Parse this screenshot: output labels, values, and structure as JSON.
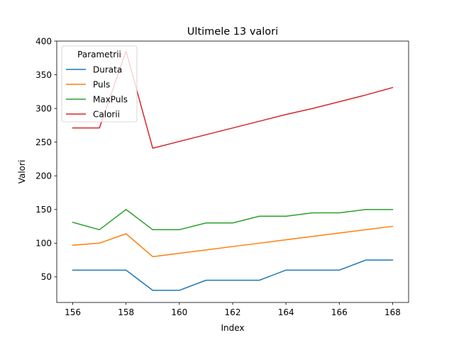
{
  "chart_data": {
    "type": "line",
    "title": "Ultimele 13 valori",
    "xlabel": "Index",
    "ylabel": "Valori",
    "x": [
      156,
      157,
      158,
      159,
      160,
      161,
      162,
      163,
      164,
      165,
      166,
      167,
      168
    ],
    "xlim": [
      155.4,
      168.6
    ],
    "ylim": [
      12,
      400
    ],
    "xticks": [
      156,
      158,
      160,
      162,
      164,
      166,
      168
    ],
    "yticks": [
      50,
      100,
      150,
      200,
      250,
      300,
      350,
      400
    ],
    "grid": false,
    "legend": {
      "title": "Parametrii",
      "placement": "top-left"
    },
    "series": [
      {
        "name": "Durata",
        "color": "#1f77b4",
        "values": [
          60,
          60,
          60,
          30,
          30,
          45,
          45,
          45,
          60,
          60,
          60,
          75,
          75
        ]
      },
      {
        "name": "Puls",
        "color": "#ff7f0e",
        "values": [
          97,
          100,
          114,
          80,
          85,
          90,
          95,
          100,
          105,
          110,
          115,
          120,
          125
        ]
      },
      {
        "name": "MaxPuls",
        "color": "#2ca02c",
        "values": [
          131,
          120,
          150,
          120,
          120,
          130,
          130,
          140,
          140,
          145,
          145,
          150,
          150
        ]
      },
      {
        "name": "Calorii",
        "color": "#d62728",
        "values": [
          271,
          271,
          385,
          241,
          251,
          261,
          271,
          281,
          291,
          300,
          310,
          320,
          331
        ]
      }
    ]
  }
}
